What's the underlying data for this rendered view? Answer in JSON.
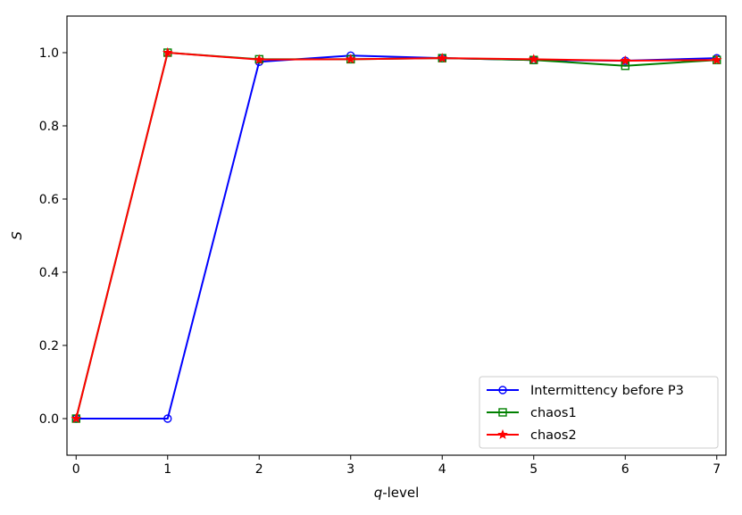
{
  "chart_data": {
    "type": "line",
    "title": "",
    "xlabel_var": "q",
    "xlabel_rest": "-level",
    "ylabel": "S",
    "xlim": [
      -0.1,
      7.1
    ],
    "ylim": [
      -0.1,
      1.1
    ],
    "xticks": [
      0,
      1,
      2,
      3,
      4,
      5,
      6,
      7
    ],
    "yticks": [
      0.0,
      0.2,
      0.4,
      0.6,
      0.8,
      1.0
    ],
    "ytick_labels": [
      "0.0",
      "0.2",
      "0.4",
      "0.6",
      "0.8",
      "1.0"
    ],
    "grid": false,
    "legend_position": "lower-right",
    "x": [
      0,
      1,
      2,
      3,
      4,
      5,
      6,
      7
    ],
    "series": [
      {
        "name": "Intermittency before P3",
        "color": "#0000ff",
        "marker": "circle",
        "values": [
          0.0,
          0.0,
          0.975,
          0.992,
          0.985,
          0.98,
          0.978,
          0.985
        ]
      },
      {
        "name": "chaos1",
        "color": "#008000",
        "marker": "square",
        "values": [
          0.0,
          1.0,
          0.982,
          0.982,
          0.985,
          0.98,
          0.964,
          0.98
        ]
      },
      {
        "name": "chaos2",
        "color": "#ff0000",
        "marker": "star",
        "values": [
          0.0,
          1.0,
          0.981,
          0.982,
          0.985,
          0.982,
          0.978,
          0.98
        ]
      }
    ]
  }
}
